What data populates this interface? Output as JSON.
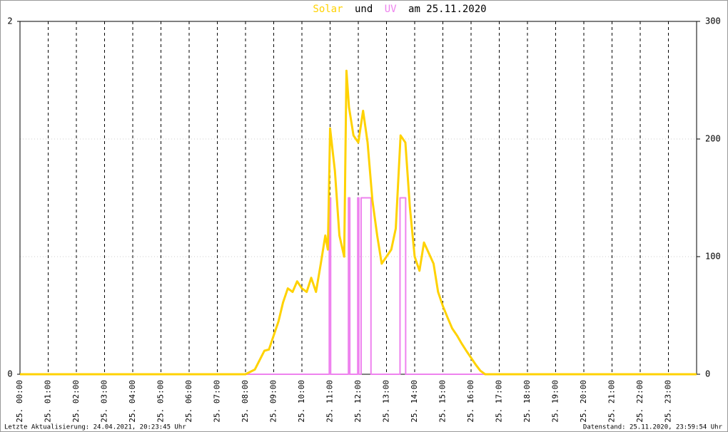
{
  "chart_data": {
    "type": "line",
    "title_connector": "und",
    "title_suffix": "am 25.11.2020",
    "xlim": [
      0,
      24
    ],
    "xticks": [
      {
        "value": 0,
        "label": "25. 00:00"
      },
      {
        "value": 1,
        "label": "25. 01:00"
      },
      {
        "value": 2,
        "label": "25. 02:00"
      },
      {
        "value": 3,
        "label": "25. 03:00"
      },
      {
        "value": 4,
        "label": "25. 04:00"
      },
      {
        "value": 5,
        "label": "25. 05:00"
      },
      {
        "value": 6,
        "label": "25. 06:00"
      },
      {
        "value": 7,
        "label": "25. 07:00"
      },
      {
        "value": 8,
        "label": "25. 08:00"
      },
      {
        "value": 9,
        "label": "25. 09:00"
      },
      {
        "value": 10,
        "label": "25. 10:00"
      },
      {
        "value": 11,
        "label": "25. 11:00"
      },
      {
        "value": 12,
        "label": "25. 12:00"
      },
      {
        "value": 13,
        "label": "25. 13:00"
      },
      {
        "value": 14,
        "label": "25. 14:00"
      },
      {
        "value": 15,
        "label": "25. 15:00"
      },
      {
        "value": 16,
        "label": "25. 16:00"
      },
      {
        "value": 17,
        "label": "25. 17:00"
      },
      {
        "value": 18,
        "label": "25. 18:00"
      },
      {
        "value": 19,
        "label": "25. 19:00"
      },
      {
        "value": 20,
        "label": "25. 20:00"
      },
      {
        "value": 21,
        "label": "25. 21:00"
      },
      {
        "value": 22,
        "label": "25. 22:00"
      },
      {
        "value": 23,
        "label": "25. 23:00"
      }
    ],
    "ylim": [
      0,
      2
    ],
    "yticks": [
      0,
      2
    ],
    "y2lim": [
      0,
      300
    ],
    "y2ticks": [
      0,
      100,
      200,
      300
    ],
    "grid": true,
    "series": [
      {
        "name": "Solar",
        "color": "#ffd200",
        "axis": "y2",
        "x": [
          0,
          8,
          8.33,
          8.67,
          8.83,
          9,
          9.17,
          9.33,
          9.5,
          9.67,
          9.83,
          10,
          10.17,
          10.33,
          10.5,
          10.67,
          10.83,
          10.92,
          11,
          11.17,
          11.33,
          11.5,
          11.58,
          11.67,
          11.83,
          12,
          12.17,
          12.33,
          12.5,
          12.67,
          12.83,
          13,
          13.17,
          13.33,
          13.5,
          13.67,
          13.83,
          14,
          14.17,
          14.33,
          14.5,
          14.67,
          14.83,
          15,
          15.17,
          15.33,
          15.5,
          15.67,
          15.83,
          16,
          16.17,
          16.33,
          16.5,
          24
        ],
        "values": [
          0,
          0,
          4,
          20,
          21,
          33,
          45,
          61,
          73,
          70,
          79,
          73,
          70,
          82,
          70,
          94,
          118,
          106,
          209,
          173,
          118,
          100,
          258,
          227,
          203,
          197,
          224,
          197,
          148,
          118,
          94,
          100,
          106,
          124,
          203,
          197,
          142,
          100,
          88,
          112,
          103,
          94,
          70,
          58,
          48,
          39,
          33,
          26,
          20,
          14,
          8,
          3,
          0,
          0
        ]
      },
      {
        "name": "UV",
        "color": "#ee82ee",
        "axis": "y",
        "x": [
          0,
          10.97,
          10.97,
          11.02,
          11.02,
          11.65,
          11.65,
          11.7,
          11.7,
          11.98,
          11.98,
          12.02,
          12.02,
          12.1,
          12.1,
          12.45,
          12.45,
          13.48,
          13.48,
          13.68,
          13.68,
          24
        ],
        "values": [
          0,
          0,
          1,
          1,
          0,
          0,
          1,
          1,
          0,
          0,
          1,
          1,
          0,
          0,
          1,
          1,
          0,
          0,
          1,
          1,
          0,
          0
        ]
      }
    ],
    "footer_left": "Letzte Aktualisierung: 24.04.2021, 20:23:45 Uhr",
    "footer_right": "Datenstand: 25.11.2020, 23:59:54 Uhr"
  }
}
